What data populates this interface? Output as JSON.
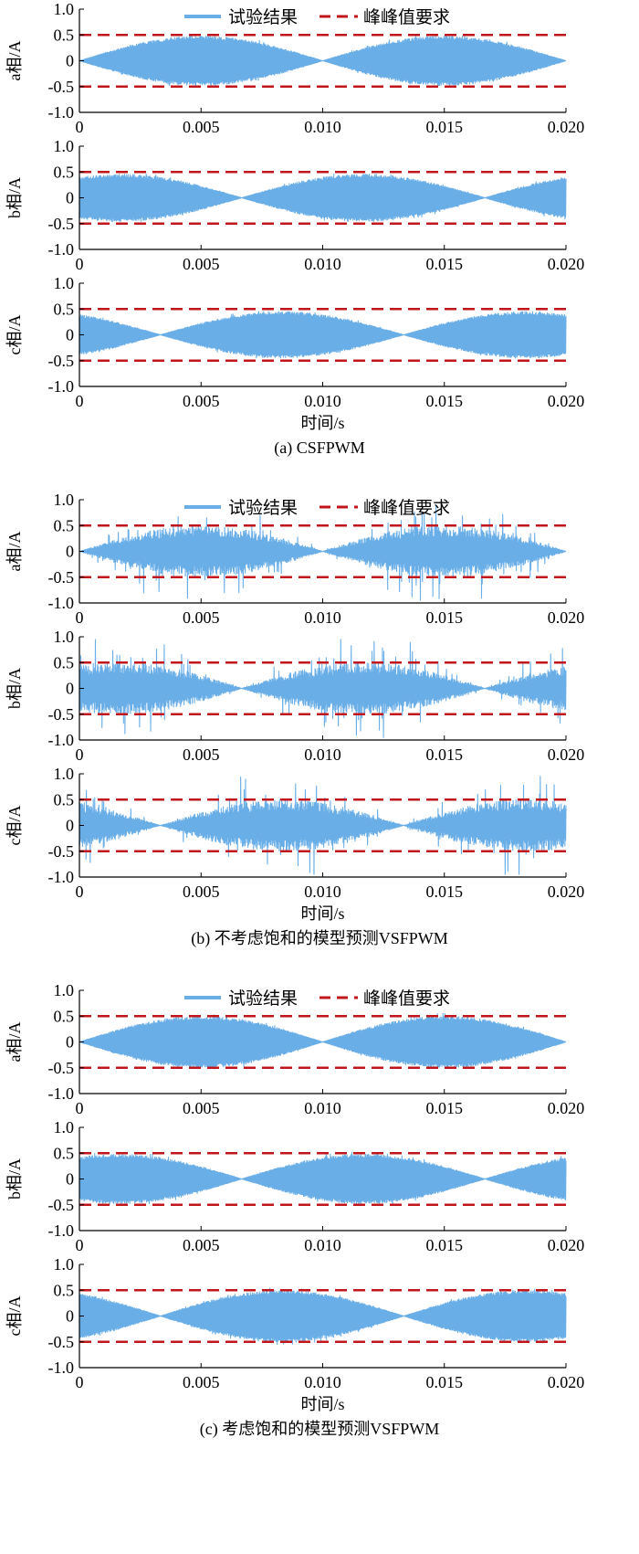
{
  "chart_data": [
    {
      "type": "line",
      "caption": "(a) CSFPWM",
      "xlabel": "时间/s",
      "xlim": [
        0,
        0.02
      ],
      "xticks": [
        "0",
        "0.005",
        "0.010",
        "0.015",
        "0.020"
      ],
      "ylim": [
        -1.0,
        1.0
      ],
      "yticks": [
        "1.0",
        "0.5",
        "0",
        "-0.5",
        "-1.0"
      ],
      "legend": {
        "placement": "top",
        "entries": [
          "试验结果",
          "峰峰值要求"
        ]
      },
      "limit_lines": [
        0.5,
        -0.5
      ],
      "colors": {
        "signal": "#6aaee8",
        "limit": "#c0161c"
      },
      "subplots": [
        {
          "ylabel": "a相/A",
          "envelope_peak": 0.48,
          "envelope_zeros": [
            0,
            0.01,
            0.02
          ],
          "spike_peak": 0.48
        },
        {
          "ylabel": "b相/A",
          "envelope_peak": 0.46,
          "envelope_zeros": [
            0.00667,
            0.01667
          ],
          "spike_peak": 0.46
        },
        {
          "ylabel": "c相/A",
          "envelope_peak": 0.45,
          "envelope_zeros": [
            0.00333,
            0.01333
          ],
          "spike_peak": 0.45
        }
      ]
    },
    {
      "type": "line",
      "caption": "(b) 不考虑饱和的模型预测VSFPWM",
      "xlabel": "时间/s",
      "xlim": [
        0,
        0.02
      ],
      "xticks": [
        "0",
        "0.005",
        "0.010",
        "0.015",
        "0.020"
      ],
      "ylim": [
        -1.0,
        1.0
      ],
      "yticks": [
        "1.0",
        "0.5",
        "0",
        "-0.5",
        "-1.0"
      ],
      "legend": {
        "placement": "top",
        "entries": [
          "试验结果",
          "峰峰值要求"
        ]
      },
      "limit_lines": [
        0.5,
        -0.5
      ],
      "colors": {
        "signal": "#6aaee8",
        "limit": "#c0161c"
      },
      "subplots": [
        {
          "ylabel": "a相/A",
          "envelope_peak": 0.5,
          "envelope_zeros": [
            0,
            0.01,
            0.02
          ],
          "spike_peak": 0.95
        },
        {
          "ylabel": "b相/A",
          "envelope_peak": 0.5,
          "envelope_zeros": [
            0.00667,
            0.01667
          ],
          "spike_peak": 0.95
        },
        {
          "ylabel": "c相/A",
          "envelope_peak": 0.5,
          "envelope_zeros": [
            0.00333,
            0.01333
          ],
          "spike_peak": 0.95
        }
      ]
    },
    {
      "type": "line",
      "caption": "(c) 考虑饱和的模型预测VSFPWM",
      "xlabel": "时间/s",
      "xlim": [
        0,
        0.02
      ],
      "xticks": [
        "0",
        "0.005",
        "0.010",
        "0.015",
        "0.020"
      ],
      "ylim": [
        -1.0,
        1.0
      ],
      "yticks": [
        "1.0",
        "0.5",
        "0",
        "-0.5",
        "-1.0"
      ],
      "legend": {
        "placement": "top",
        "entries": [
          "试验结果",
          "峰峰值要求"
        ]
      },
      "limit_lines": [
        0.5,
        -0.5
      ],
      "colors": {
        "signal": "#6aaee8",
        "limit": "#c0161c"
      },
      "subplots": [
        {
          "ylabel": "a相/A",
          "envelope_peak": 0.5,
          "envelope_zeros": [
            0,
            0.01,
            0.02
          ],
          "spike_peak": 0.55
        },
        {
          "ylabel": "b相/A",
          "envelope_peak": 0.48,
          "envelope_zeros": [
            0.00667,
            0.01667
          ],
          "spike_peak": 0.52
        },
        {
          "ylabel": "c相/A",
          "envelope_peak": 0.5,
          "envelope_zeros": [
            0.00333,
            0.01333
          ],
          "spike_peak": 0.55
        }
      ]
    }
  ]
}
